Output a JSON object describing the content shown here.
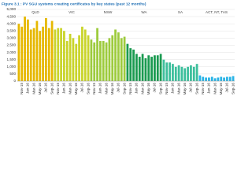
{
  "chart_data": {
    "type": "bar",
    "title": "Figure 3.1 : PV SGU systems creating certificates by key states (past 12 months)",
    "ylim": [
      0,
      5000
    ],
    "yticks": [
      0,
      500,
      {
        "value": 1000,
        "label": "1,000"
      },
      {
        "value": 1500,
        "label": "1,500"
      },
      {
        "value": 2000,
        "label": "2,000"
      },
      {
        "value": 2500,
        "label": "2,500"
      },
      {
        "value": 3000,
        "label": "3,000"
      },
      {
        "value": 3500,
        "label": "3,500"
      },
      {
        "value": 4000,
        "label": "4,000"
      },
      {
        "value": 4500,
        "label": "4,500"
      },
      {
        "value": 5000,
        "label": "5,000"
      }
    ],
    "grid": true,
    "series": [
      {
        "name": "QLD",
        "color": "#e6b800",
        "categories": [
          null,
          "Nov-15",
          null,
          "Jan-16",
          null,
          "Mar-16",
          null,
          "May-16",
          null,
          "Jul-16",
          null,
          "Sep-16"
        ],
        "values": [
          4000,
          3800,
          4500,
          4300,
          3600,
          3700,
          4200,
          3500,
          3800,
          4400,
          3700,
          4200
        ]
      },
      {
        "name": "VIC",
        "color": "#c9d42a",
        "categories": [
          null,
          "Nov-15",
          null,
          "Jan-16",
          null,
          "Mar-16",
          null,
          "May-16",
          null,
          "Jul-16",
          null,
          "Sep-16"
        ],
        "values": [
          3600,
          3700,
          3700,
          3500,
          2800,
          3300,
          3000,
          2600,
          3200,
          3800,
          3600,
          3200
        ]
      },
      {
        "name": "NSW",
        "color": "#9dcb3c",
        "categories": [
          null,
          "Nov-15",
          null,
          "Jan-16",
          null,
          "Mar-16",
          null,
          "May-16",
          null,
          "Jul-16",
          null,
          "Sep-16"
        ],
        "values": [
          2900,
          2700,
          3700,
          2800,
          2800,
          2700,
          3000,
          3200,
          3600,
          3400,
          3000,
          3100
        ]
      },
      {
        "name": "WA",
        "color": "#1a9a50",
        "categories": [
          null,
          "Nov-15",
          null,
          "Jan-16",
          null,
          "Mar-16",
          null,
          "May-16",
          null,
          "Jul-16",
          null,
          "Sep-16"
        ],
        "values": [
          2600,
          2300,
          2200,
          1900,
          1700,
          1900,
          1600,
          1800,
          1700,
          1800,
          1800,
          1900
        ]
      },
      {
        "name": "SA",
        "color": "#3dbf9c",
        "categories": [
          null,
          "Nov-15",
          null,
          "Jan-16",
          null,
          "Mar-16",
          null,
          "May-16",
          null,
          "Jul-16",
          null,
          "Sep-16"
        ],
        "values": [
          1500,
          1300,
          1300,
          1200,
          1000,
          1100,
          1000,
          900,
          1000,
          1100,
          1000,
          1200
        ]
      },
      {
        "name": "ACT, NT, TAS",
        "color": "#2ab4e6",
        "categories": [
          null,
          "Nov-15",
          null,
          "Jan-16",
          null,
          "Mar-16",
          null,
          "May-16",
          null,
          "Jul-16",
          null,
          "Sep-16"
        ],
        "values": [
          400,
          300,
          250,
          250,
          300,
          200,
          250,
          300,
          250,
          300,
          300,
          350
        ]
      }
    ]
  }
}
